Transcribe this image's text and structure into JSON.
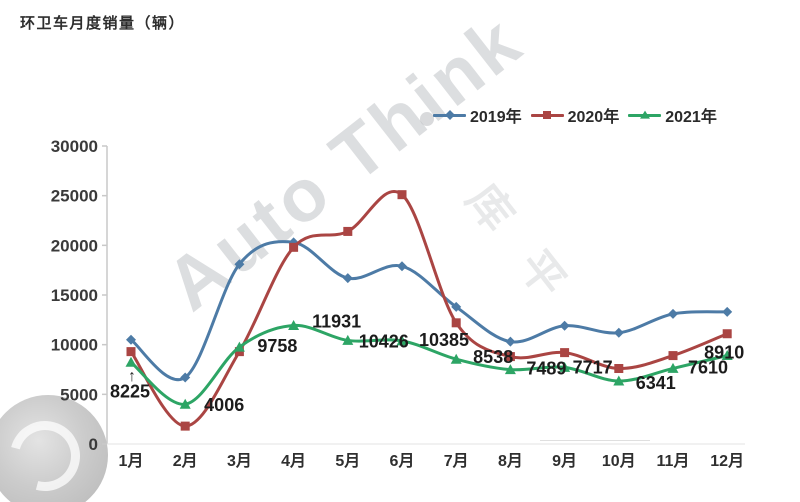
{
  "title": "环卫车月度销量（辆）",
  "legend": [
    {
      "label": "2019年",
      "color": "#4d7ba6",
      "marker": "diamond"
    },
    {
      "label": "2020年",
      "color": "#aa4543",
      "marker": "square"
    },
    {
      "label": "2021年",
      "color": "#2da565",
      "marker": "triangle"
    }
  ],
  "annotation": {
    "arrow": "↑"
  },
  "watermark": {
    "text_primary": "Auto Think",
    "text_secondary": "库 平"
  },
  "chart_data": {
    "type": "line",
    "title": "环卫车月度销量（辆）",
    "categories": [
      "1月",
      "2月",
      "3月",
      "4月",
      "5月",
      "6月",
      "7月",
      "8月",
      "9月",
      "10月",
      "11月",
      "12月"
    ],
    "y_ticks": [
      0,
      5000,
      10000,
      15000,
      20000,
      25000,
      30000
    ],
    "ylim": [
      0,
      30000
    ],
    "grid": false,
    "legend_position": "top-right",
    "series": [
      {
        "name": "2019年",
        "color": "#4d7ba6",
        "marker": "diamond",
        "values": [
          10500,
          6700,
          18100,
          20300,
          16700,
          17900,
          13800,
          10300,
          11900,
          11200,
          13100,
          13300
        ]
      },
      {
        "name": "2020年",
        "color": "#aa4543",
        "marker": "square",
        "values": [
          9300,
          1800,
          9300,
          19800,
          21400,
          25100,
          12200,
          8800,
          9200,
          7600,
          8900,
          11100
        ]
      },
      {
        "name": "2021年",
        "color": "#2da565",
        "marker": "triangle",
        "values": [
          8225,
          4006,
          9758,
          11931,
          10426,
          10385,
          8538,
          7489,
          7717,
          6341,
          7610,
          8910
        ],
        "point_labels": [
          "8225",
          "4006",
          "9758",
          "11931",
          "10426",
          "10385",
          "8538",
          "7489",
          "7717",
          "6341",
          "7610",
          "8910"
        ]
      }
    ]
  }
}
